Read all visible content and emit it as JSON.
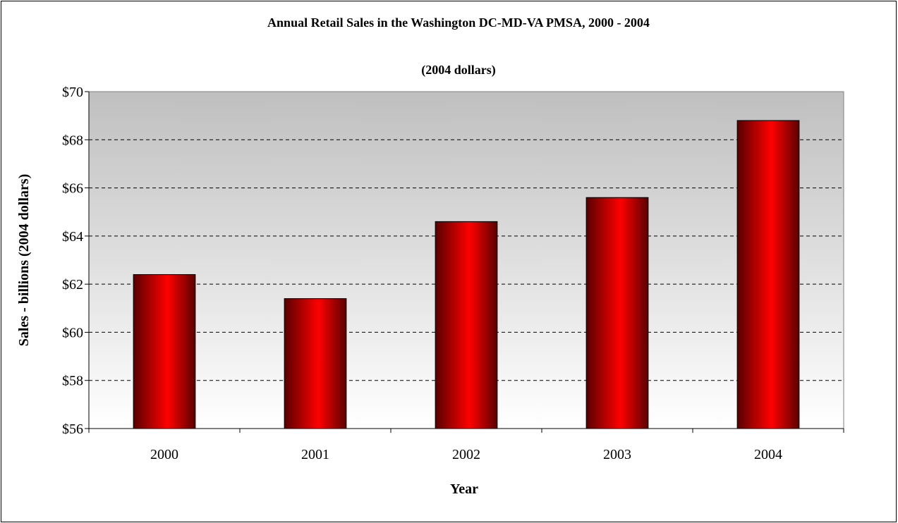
{
  "chart_data": {
    "type": "bar",
    "title": "Annual Retail Sales in the Washington DC-MD-VA PMSA, 2000 - 2004",
    "subtitle": "(2004 dollars)",
    "xlabel": "Year",
    "ylabel": "Sales - billions (2004 dollars)",
    "categories": [
      "2000",
      "2001",
      "2002",
      "2003",
      "2004"
    ],
    "values": [
      62.4,
      61.4,
      64.6,
      65.6,
      68.8
    ],
    "ylim": [
      56,
      70
    ],
    "yticks": [
      56,
      58,
      60,
      62,
      64,
      66,
      68,
      70
    ],
    "ytick_labels": [
      "$56",
      "$58",
      "$60",
      "$62",
      "$64",
      "$66",
      "$68",
      "$70"
    ],
    "grid": true,
    "legend": "none",
    "colors": {
      "bar": "#ff0000",
      "bar_dark": "#5a0000",
      "plot_bg_top": "#bfbfbf",
      "plot_bg_bottom": "#ffffff"
    }
  }
}
